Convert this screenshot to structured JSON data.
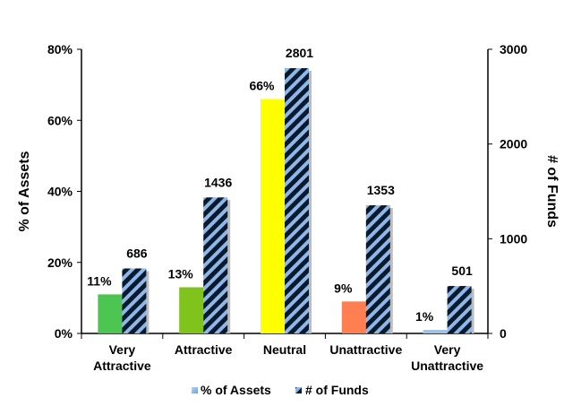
{
  "chart_data": {
    "type": "bar",
    "categories": [
      [
        "Very",
        "Attractive"
      ],
      [
        "Attractive"
      ],
      [
        "Neutral"
      ],
      [
        "Unattractive"
      ],
      [
        "Very",
        "Unattractive"
      ]
    ],
    "series": [
      {
        "name": "% of Assets",
        "axis": "left",
        "values": [
          11,
          13,
          66,
          9,
          1
        ],
        "labels": [
          "11%",
          "13%",
          "66%",
          "9%",
          "1%"
        ],
        "colors": [
          "#4cc552",
          "#7fc31c",
          "#ffff00",
          "#ff7f50",
          "#9ec3e6"
        ]
      },
      {
        "name": "# of Funds",
        "axis": "right",
        "values": [
          686,
          1436,
          2801,
          1353,
          501
        ],
        "labels": [
          "686",
          "1436",
          "2801",
          "1353",
          "501"
        ],
        "pattern": "diagonal-stripes",
        "colors": [
          "#0a1a2e",
          "#8fb8e8"
        ]
      }
    ],
    "y_left": {
      "label": "% of Assets",
      "ylim": [
        0,
        80
      ],
      "ticks": [
        0,
        20,
        40,
        60,
        80
      ],
      "tick_labels": [
        "0%",
        "20%",
        "40%",
        "60%",
        "80%"
      ]
    },
    "y_right": {
      "label": "# of Funds",
      "ylim": [
        0,
        3000
      ],
      "ticks": [
        0,
        1000,
        2000,
        3000
      ],
      "tick_labels": [
        "0",
        "1000",
        "2000",
        "3000"
      ]
    },
    "grid": false,
    "legend": {
      "position": "bottom",
      "entries": [
        "% of Assets",
        "# of Funds"
      ]
    }
  }
}
